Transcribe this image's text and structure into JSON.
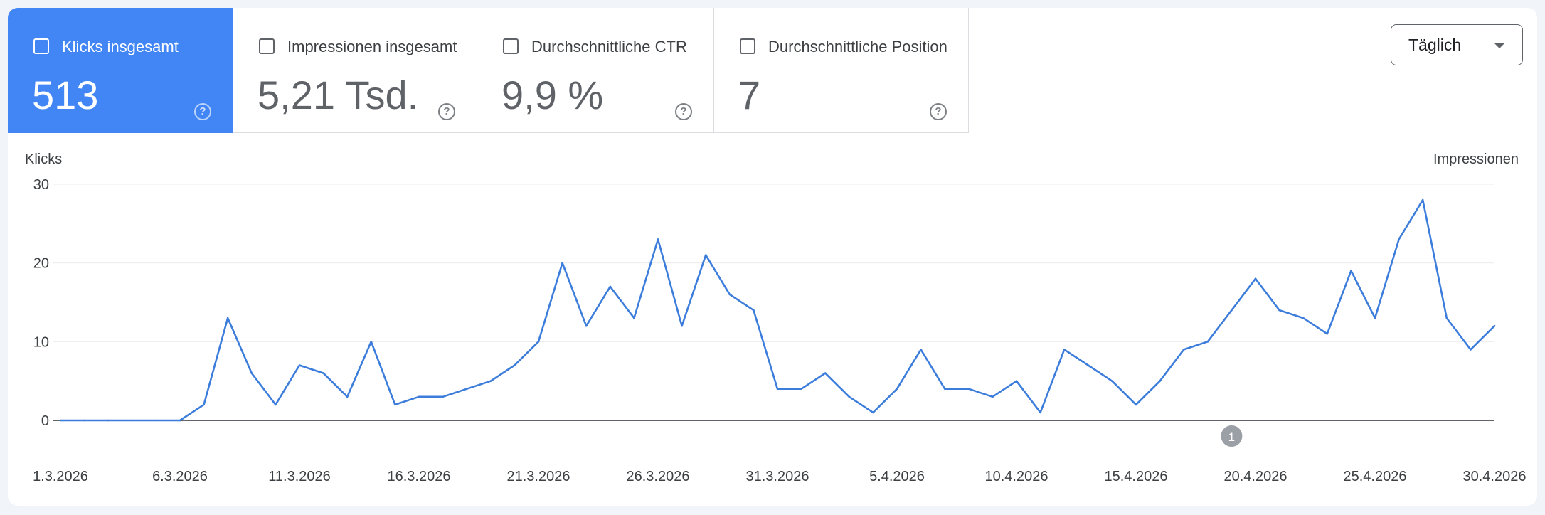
{
  "metrics": [
    {
      "label": "Klicks insgesamt",
      "value": "513",
      "help": "?",
      "active": true
    },
    {
      "label": "Impressionen insgesamt",
      "value": "5,21 Tsd.",
      "help": "?",
      "active": false
    },
    {
      "label": "Durchschnittliche CTR",
      "value": "9,9 %",
      "help": "?",
      "active": false
    },
    {
      "label": "Durchschnittliche Position",
      "value": "7",
      "help": "?",
      "active": false
    }
  ],
  "period_select": {
    "value": "Täglich",
    "icon": "caret-down-icon"
  },
  "colors": {
    "accent": "#4285f4",
    "line": "#3c7ddc"
  },
  "chart_data": {
    "type": "line",
    "ylabel_left": "Klicks",
    "ylabel_right": "Impressionen",
    "yticks": [
      0,
      10,
      20,
      30
    ],
    "ylim": [
      0,
      30
    ],
    "grid": true,
    "xtick_labels": [
      "1.3.2026",
      "6.3.2026",
      "11.3.2026",
      "16.3.2026",
      "21.3.2026",
      "26.3.2026",
      "31.3.2026",
      "5.4.2026",
      "10.4.2026",
      "15.4.2026",
      "20.4.2026",
      "25.4.2026",
      "30.4.2026"
    ],
    "annotations": [
      {
        "label": "1",
        "x": "19.4.2026"
      }
    ],
    "series": [
      {
        "x_start": "1.3.2026",
        "x_end": "30.4.2026",
        "values": [
          0,
          0,
          0,
          0,
          0,
          0,
          2,
          13,
          6,
          2,
          7,
          6,
          3,
          10,
          2,
          3,
          3,
          4,
          5,
          7,
          10,
          20,
          12,
          17,
          13,
          23,
          12,
          21,
          16,
          14,
          4,
          4,
          6,
          3,
          1,
          4,
          9,
          4,
          4,
          3,
          5,
          1,
          9,
          7,
          5,
          2,
          5,
          9,
          10,
          14,
          18,
          14,
          13,
          11,
          19,
          13,
          23,
          28,
          13,
          9,
          12
        ]
      }
    ]
  }
}
